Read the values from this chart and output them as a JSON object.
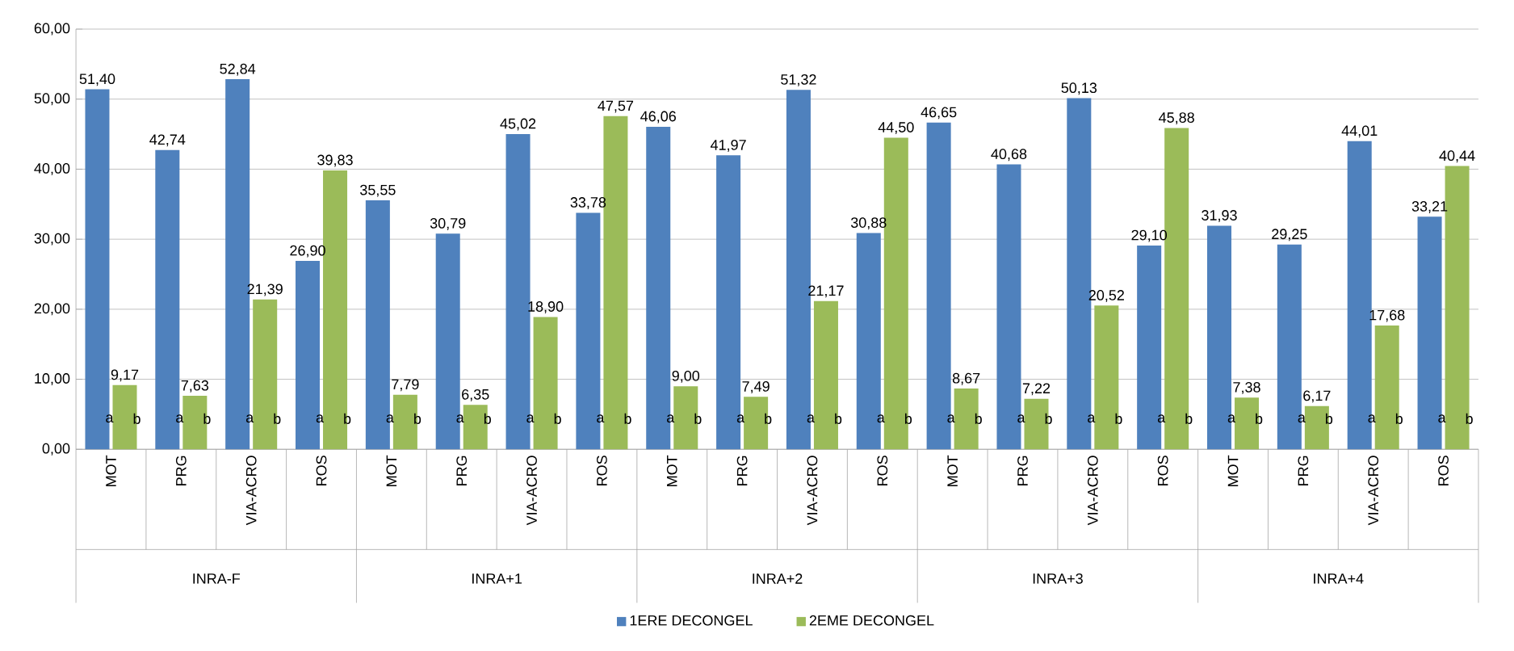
{
  "chart_data": {
    "type": "bar",
    "categories": [
      "MOT",
      "PRG",
      "VIA-ACRO",
      "ROS",
      "MOT",
      "PRG",
      "VIA-ACRO",
      "ROS",
      "MOT",
      "PRG",
      "VIA-ACRO",
      "ROS",
      "MOT",
      "PRG",
      "VIA-ACRO",
      "ROS",
      "MOT",
      "PRG",
      "VIA-ACRO",
      "ROS"
    ],
    "series": [
      {
        "name": "1ERE DECONGEL",
        "color": "#4f81bd",
        "values": [
          51.4,
          42.74,
          52.84,
          26.9,
          35.55,
          30.79,
          45.02,
          33.78,
          46.06,
          41.97,
          51.32,
          30.88,
          46.65,
          40.68,
          50.13,
          29.1,
          31.93,
          29.25,
          44.01,
          33.21
        ],
        "value_labels": [
          "51,40",
          "42,74",
          "52,84",
          "26,90",
          "35,55",
          "30,79",
          "45,02",
          "33,78",
          "46,06",
          "41,97",
          "51,32",
          "30,88",
          "46,65",
          "40,68",
          "50,13",
          "29,10",
          "31,93",
          "29,25",
          "44,01",
          "33,21"
        ]
      },
      {
        "name": "2EME DECONGEL",
        "color": "#9bbb59",
        "values": [
          9.17,
          7.63,
          21.39,
          39.83,
          7.79,
          6.35,
          18.9,
          47.57,
          9.0,
          7.49,
          21.17,
          44.5,
          8.67,
          7.22,
          20.52,
          45.88,
          7.38,
          6.17,
          17.68,
          40.44
        ],
        "value_labels": [
          "9,17",
          "7,63",
          "21,39",
          "39,83",
          "7,79",
          "6,35",
          "18,90",
          "47,57",
          "9,00",
          "7,49",
          "21,17",
          "44,50",
          "8,67",
          "7,22",
          "20,52",
          "45,88",
          "7,38",
          "6,17",
          "17,68",
          "40,44"
        ]
      }
    ],
    "ylim": [
      0,
      60
    ],
    "yticks": [
      {
        "value": 0,
        "label": "0,00"
      },
      {
        "value": 10,
        "label": "10,00"
      },
      {
        "value": 20,
        "label": "20,00"
      },
      {
        "value": 30,
        "label": "30,00"
      },
      {
        "value": 40,
        "label": "40,00"
      },
      {
        "value": 50,
        "label": "50,00"
      },
      {
        "value": 60,
        "label": "60,00"
      }
    ],
    "grid": "y",
    "legend": "bottom",
    "annotations": [
      "INRA-F",
      "INRA+1",
      "INRA+2",
      "INRA+3",
      "INRA+4",
      "a",
      "b",
      "a",
      "b",
      "a",
      "b",
      "a",
      "b",
      "a",
      "b",
      "a",
      "b",
      "a",
      "b",
      "a",
      "b",
      "a",
      "b",
      "a",
      "b",
      "a",
      "b",
      "a",
      "b",
      "a",
      "b",
      "a",
      "b",
      "a",
      "b",
      "a",
      "b",
      "a",
      "b",
      "a",
      "b",
      "a",
      "b",
      "a",
      "b"
    ]
  }
}
